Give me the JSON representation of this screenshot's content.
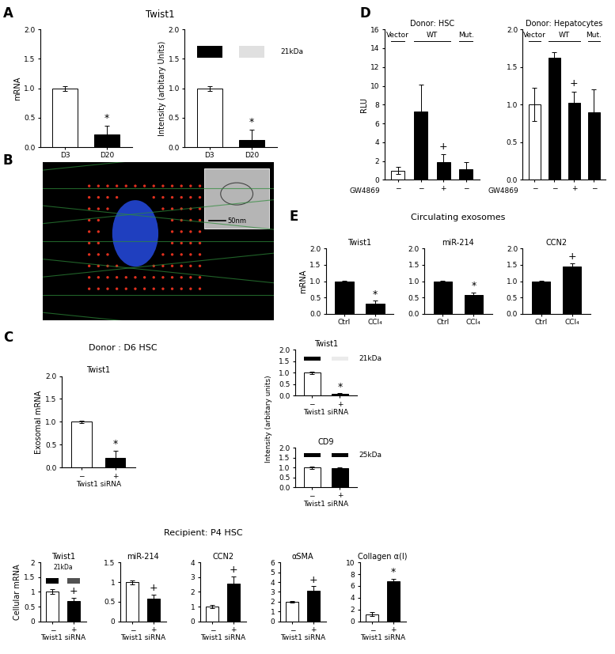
{
  "panels": {
    "A": {
      "heading": "Twist1"
    },
    "B": {
      "scale_bar_label": "50nm"
    },
    "C": {
      "donor_heading": "Donor : D6 HSC",
      "recipient_heading": "Recipient: P4 HSC",
      "intensity_label": "Intensity (arbitary units)"
    },
    "D": {},
    "E": {
      "heading": "Circulating exosomes"
    }
  },
  "chart_data": [
    {
      "panel": "A",
      "type": "bar",
      "ylabel": "mRNA",
      "categories": [
        "D3",
        "D20"
      ],
      "values": [
        1.0,
        0.22
      ],
      "errors": [
        0.04,
        0.14
      ],
      "colors": [
        "#ffffff",
        "#000000"
      ],
      "ylim": [
        0,
        2
      ],
      "yticks": [
        {
          "value": 0,
          "label": "0.0"
        },
        0.5,
        {
          "value": 1,
          "label": "1.0"
        },
        1.5,
        {
          "value": 2,
          "label": "2.0"
        }
      ],
      "significance": [
        null,
        "*"
      ]
    },
    {
      "panel": "A",
      "type": "bar",
      "ylabel": "Intensity (arbitary Units)",
      "categories": [
        "D3",
        "D20"
      ],
      "values": [
        1.0,
        0.12
      ],
      "errors": [
        0.04,
        0.18
      ],
      "colors": [
        "#ffffff",
        "#000000"
      ],
      "ylim": [
        0,
        2
      ],
      "yticks": [
        {
          "value": 0,
          "label": "0.0"
        },
        0.5,
        {
          "value": 1,
          "label": "1.0"
        },
        1.5,
        {
          "value": 2,
          "label": "2.0"
        }
      ],
      "significance": [
        null,
        "*"
      ],
      "blot_label": "21kDa"
    },
    {
      "panel": "C",
      "type": "bar",
      "title": "Twist1",
      "ylabel": "Exosomal mRNA",
      "xlabel": "Twist1 siRNA",
      "categories": [
        "−",
        "+"
      ],
      "values": [
        1.0,
        0.22
      ],
      "errors": [
        0.02,
        0.14
      ],
      "colors": [
        "#ffffff",
        "#000000"
      ],
      "ylim": [
        0,
        2
      ],
      "yticks": [
        {
          "value": 0,
          "label": "0.0"
        },
        0.5,
        {
          "value": 1,
          "label": "1.0"
        },
        1.5,
        {
          "value": 2,
          "label": "2.0"
        }
      ],
      "significance": [
        null,
        "*"
      ]
    },
    {
      "panel": "C",
      "type": "bar",
      "title": "Twist1",
      "xlabel": "Twist1 siRNA",
      "categories": [
        "−",
        "+"
      ],
      "values": [
        1.0,
        0.08
      ],
      "errors": [
        0.04,
        0.02
      ],
      "colors": [
        "#ffffff",
        "#000000"
      ],
      "ylim": [
        0,
        2
      ],
      "yticks": [
        {
          "value": 0,
          "label": "0.0"
        },
        0.5,
        {
          "value": 1,
          "label": "1.0"
        },
        1.5,
        {
          "value": 2,
          "label": "2.0"
        }
      ],
      "significance": [
        null,
        "*"
      ],
      "blot_label": "21kDa"
    },
    {
      "panel": "C",
      "type": "bar",
      "title": "CD9",
      "xlabel": "Twist1 siRNA",
      "categories": [
        "−",
        "+"
      ],
      "values": [
        1.0,
        0.98
      ],
      "errors": [
        0.05,
        0.05
      ],
      "colors": [
        "#ffffff",
        "#000000"
      ],
      "ylim": [
        0,
        2
      ],
      "yticks": [
        {
          "value": 0,
          "label": "0.0"
        },
        0.5,
        {
          "value": 1,
          "label": "1.0"
        },
        1.5,
        {
          "value": 2,
          "label": "2.0"
        }
      ],
      "significance": [
        null,
        null
      ],
      "blot_label": "25kDa"
    },
    {
      "panel": "C",
      "type": "bar",
      "title": "Twist1",
      "ylabel": "Cellular mRNA",
      "xlabel": "Twist1 siRNA",
      "categories": [
        "−",
        "+"
      ],
      "values": [
        1.0,
        0.68
      ],
      "errors": [
        0.08,
        0.12
      ],
      "colors": [
        "#ffffff",
        "#000000"
      ],
      "ylim": [
        0,
        2
      ],
      "yticks": [
        0,
        0.5,
        1,
        1.5,
        2
      ],
      "significance": [
        null,
        "+"
      ],
      "blot_label": "21kDa"
    },
    {
      "panel": "C",
      "type": "bar",
      "title": "miR-214",
      "xlabel": "Twist1 siRNA",
      "categories": [
        "−",
        "+"
      ],
      "values": [
        1.0,
        0.58
      ],
      "errors": [
        0.05,
        0.1
      ],
      "colors": [
        "#ffffff",
        "#000000"
      ],
      "ylim": [
        0,
        1.5
      ],
      "yticks": [
        0,
        0.5,
        1,
        1.5
      ],
      "significance": [
        null,
        "+"
      ]
    },
    {
      "panel": "C",
      "type": "bar",
      "title": "CCN2",
      "xlabel": "Twist1 siRNA",
      "categories": [
        "−",
        "+"
      ],
      "values": [
        1.0,
        2.55
      ],
      "errors": [
        0.1,
        0.5
      ],
      "colors": [
        "#ffffff",
        "#000000"
      ],
      "ylim": [
        0,
        4
      ],
      "yticks": [
        0,
        1,
        2,
        3,
        4
      ],
      "significance": [
        null,
        "+"
      ]
    },
    {
      "panel": "C",
      "type": "bar",
      "title": "αSMA",
      "xlabel": "Twist1 siRNA",
      "categories": [
        "−",
        "+"
      ],
      "values": [
        2.0,
        3.1
      ],
      "errors": [
        0.1,
        0.5
      ],
      "colors": [
        "#ffffff",
        "#000000"
      ],
      "ylim": [
        0,
        6
      ],
      "yticks": [
        0,
        1,
        2,
        3,
        4,
        5,
        6
      ],
      "significance": [
        null,
        "+"
      ]
    },
    {
      "panel": "C",
      "type": "bar",
      "title": "Collagen α(I)",
      "xlabel": "Twist1 siRNA",
      "categories": [
        "−",
        "+"
      ],
      "values": [
        1.2,
        6.8
      ],
      "errors": [
        0.35,
        0.45
      ],
      "colors": [
        "#ffffff",
        "#000000"
      ],
      "ylim": [
        0,
        10
      ],
      "yticks": [
        0,
        2,
        4,
        6,
        8,
        10
      ],
      "significance": [
        null,
        "*"
      ]
    },
    {
      "panel": "D",
      "type": "bar",
      "title": "Donor: HSC",
      "ylabel": "RLU",
      "xlabel": "GW4869",
      "categories": [
        "−",
        "−",
        "+",
        "−"
      ],
      "values": [
        1.0,
        7.3,
        1.9,
        1.1
      ],
      "errors": [
        0.4,
        2.8,
        0.8,
        0.8
      ],
      "colors": [
        "#ffffff",
        "#000000",
        "#000000",
        "#000000"
      ],
      "ylim": [
        0,
        16
      ],
      "yticks": [
        0,
        2,
        4,
        6,
        8,
        10,
        12,
        14,
        16
      ],
      "significance": [
        null,
        null,
        "+",
        null
      ],
      "group_labels": [
        {
          "text": "Vector",
          "span": [
            0,
            0
          ]
        },
        {
          "text": "WT",
          "span": [
            1,
            2
          ]
        },
        {
          "text": "Mut.",
          "span": [
            3,
            3
          ]
        }
      ]
    },
    {
      "panel": "D",
      "type": "bar",
      "title": "Donor: Hepatocytes",
      "xlabel": "GW4869",
      "categories": [
        "−",
        "−",
        "+",
        "−"
      ],
      "values": [
        1.0,
        1.62,
        1.02,
        0.9
      ],
      "errors": [
        0.22,
        0.08,
        0.15,
        0.3
      ],
      "colors": [
        "#ffffff",
        "#000000",
        "#000000",
        "#000000"
      ],
      "ylim": [
        0,
        2
      ],
      "yticks": [
        {
          "value": 0,
          "label": "0.0"
        },
        0.5,
        {
          "value": 1,
          "label": "1.0"
        },
        1.5,
        {
          "value": 2,
          "label": "2.0"
        }
      ],
      "significance": [
        null,
        null,
        "+",
        null
      ],
      "group_labels": [
        {
          "text": "Vector",
          "span": [
            0,
            0
          ]
        },
        {
          "text": "WT",
          "span": [
            1,
            2
          ]
        },
        {
          "text": "Mut.",
          "span": [
            3,
            3
          ]
        }
      ]
    },
    {
      "panel": "E",
      "type": "bar",
      "title": "Twist1",
      "ylabel": "mRNA",
      "categories": [
        "Ctrl",
        "CCl₄"
      ],
      "values": [
        1.0,
        0.32
      ],
      "errors": [
        0.02,
        0.08
      ],
      "colors": [
        "#000000",
        "#000000"
      ],
      "ylim": [
        0,
        2
      ],
      "yticks": [
        {
          "value": 0,
          "label": "0.0"
        },
        0.5,
        {
          "value": 1,
          "label": "1.0"
        },
        1.5,
        {
          "value": 2,
          "label": "2.0"
        }
      ],
      "significance": [
        null,
        "*"
      ]
    },
    {
      "panel": "E",
      "type": "bar",
      "title": "miR-214",
      "categories": [
        "Ctrl",
        "CCl₄"
      ],
      "values": [
        1.0,
        0.58
      ],
      "errors": [
        0.02,
        0.08
      ],
      "colors": [
        "#000000",
        "#000000"
      ],
      "ylim": [
        0,
        2
      ],
      "yticks": [
        {
          "value": 0,
          "label": "0.0"
        },
        0.5,
        {
          "value": 1,
          "label": "1.0"
        },
        1.5,
        {
          "value": 2,
          "label": "2.0"
        }
      ],
      "significance": [
        null,
        "*"
      ]
    },
    {
      "panel": "E",
      "type": "bar",
      "title": "CCN2",
      "categories": [
        "Ctrl",
        "CCl₄"
      ],
      "values": [
        1.0,
        1.45
      ],
      "errors": [
        0.02,
        0.1
      ],
      "colors": [
        "#000000",
        "#000000"
      ],
      "ylim": [
        0,
        2
      ],
      "yticks": [
        {
          "value": 0,
          "label": "0.0"
        },
        0.5,
        {
          "value": 1,
          "label": "1.0"
        },
        1.5,
        {
          "value": 2,
          "label": "2.0"
        }
      ],
      "significance": [
        null,
        "+"
      ]
    }
  ]
}
